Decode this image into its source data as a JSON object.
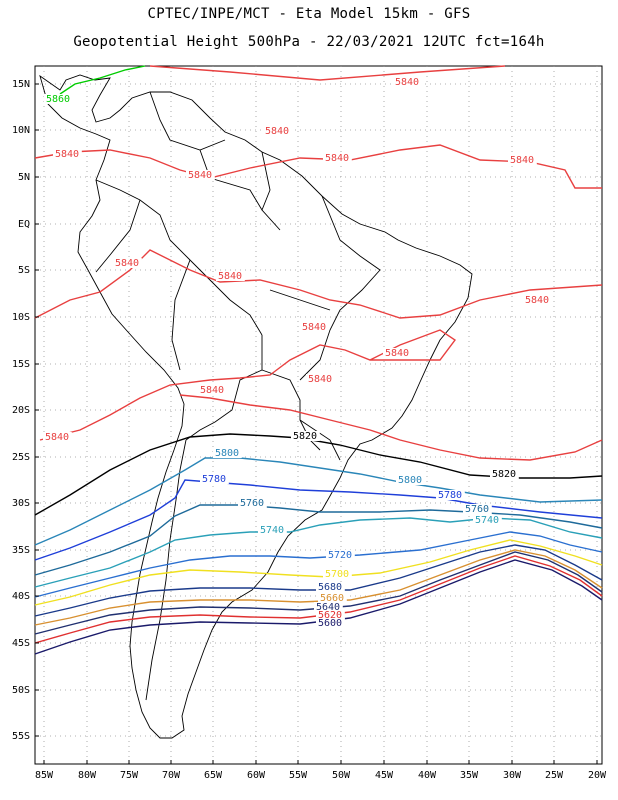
{
  "title_line1": "CPTEC/INPE/MCT -  Eta Model 15km - GFS",
  "title_line2": "Geopotential Height 500hPa - 22/03/2021 12UTC fct=164h",
  "lat_labels": [
    "15N",
    "10N",
    "5N",
    "EQ",
    "5S",
    "10S",
    "15S",
    "20S",
    "25S",
    "30S",
    "35S",
    "40S",
    "45S",
    "50S",
    "55S"
  ],
  "lon_labels": [
    "85W",
    "80W",
    "75W",
    "70W",
    "65W",
    "60W",
    "55W",
    "50W",
    "45W",
    "40W",
    "35W",
    "30W",
    "25W",
    "20W"
  ],
  "contours": [
    {
      "value": 5860,
      "color": "#00cc00",
      "labels": [
        "5860"
      ]
    },
    {
      "value": 5840,
      "color": "#e84040",
      "labels": [
        "5840",
        "5840",
        "5840",
        "5840",
        "5840",
        "5840",
        "5840",
        "5840",
        "5840",
        "5840",
        "5840",
        "5840",
        "5840",
        "5840"
      ]
    },
    {
      "value": 5820,
      "color": "#000000",
      "labels": [
        "5820",
        "5820"
      ]
    },
    {
      "value": 5800,
      "color": "#2a86b8",
      "labels": [
        "5800",
        "5800"
      ]
    },
    {
      "value": 5780,
      "color": "#1f3fd9",
      "labels": [
        "5780",
        "5780"
      ]
    },
    {
      "value": 5760,
      "color": "#1e6a9a",
      "labels": [
        "5760",
        "5760"
      ]
    },
    {
      "value": 5740,
      "color": "#2aa0b8",
      "labels": [
        "5740",
        "5740"
      ]
    },
    {
      "value": 5720,
      "color": "#2a6fd0",
      "labels": [
        "5720"
      ]
    },
    {
      "value": 5700,
      "color": "#f0e020",
      "labels": [
        "5700"
      ]
    },
    {
      "value": 5680,
      "color": "#1a3a8a",
      "labels": [
        "5680"
      ]
    },
    {
      "value": 5660,
      "color": "#d89030",
      "labels": [
        "5660"
      ]
    },
    {
      "value": 5640,
      "color": "#203070",
      "labels": [
        "5640"
      ]
    },
    {
      "value": 5620,
      "color": "#e03030",
      "labels": [
        "5620"
      ]
    },
    {
      "value": 5600,
      "color": "#1a1a6a",
      "labels": [
        "5600"
      ]
    }
  ]
}
